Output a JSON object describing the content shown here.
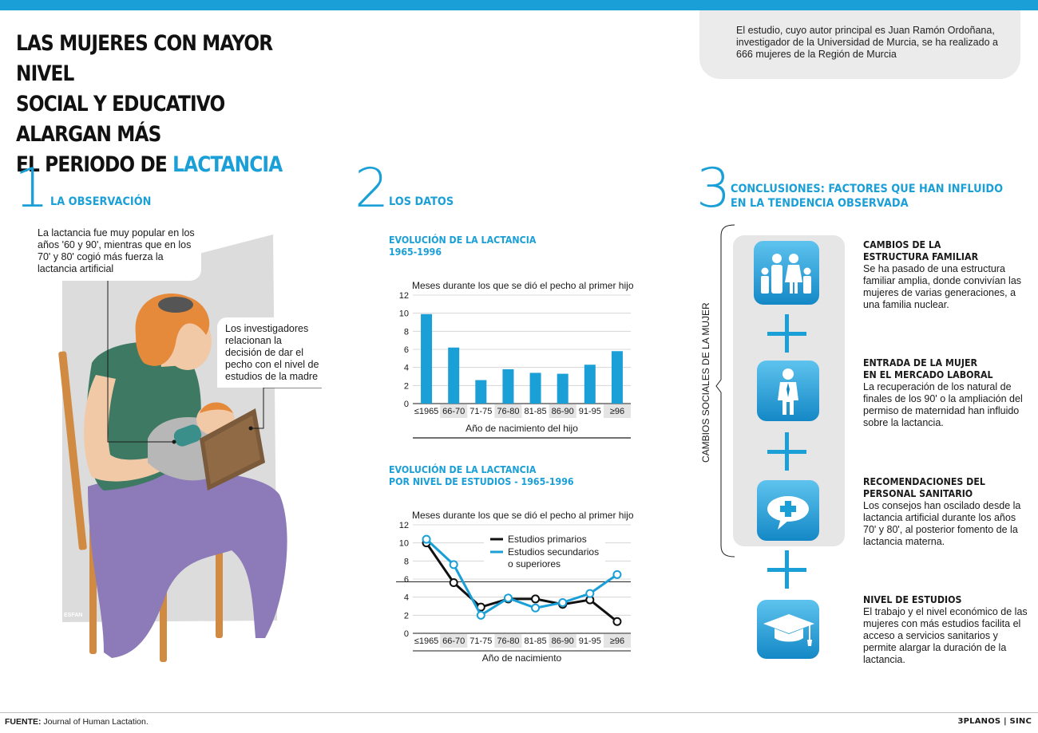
{
  "header": {
    "title_line1": "LAS MUJERES CON MAYOR NIVEL",
    "title_line2": "SOCIAL Y EDUCATIVO ALARGAN MÁS",
    "title_line3_prefix": "EL PERIODO DE ",
    "title_line3_highlight": "LACTANCIA",
    "info_text": "El estudio, cuyo autor principal es Juan Ramón Ordoñana, investigador de la Universidad de Murcia, se ha realizado a 666 mujeres de la Región de Murcia"
  },
  "section1": {
    "number": "1",
    "title": "LA OBSERVACIÓN",
    "callout1": "La lactancia fue muy popular en los años '60 y 90', mientras que en los 70' y 80' cogió más fuerza la lactancia artificial",
    "callout2": "Los investigadores relacionan la decisión de dar el pecho con el nivel de estudios de la madre",
    "illustration_signature": "ESFAN"
  },
  "section2": {
    "number": "2",
    "title": "LOS DATOS",
    "chart1_title_line1": "EVOLUCIÓN DE LA LACTANCIA",
    "chart1_title_line2": "1965-1996",
    "chart2_title_line1": "EVOLUCIÓN DE LA LACTANCIA",
    "chart2_title_line2": "POR NIVEL DE ESTUDIOS - 1965-1996"
  },
  "chart_data": [
    {
      "type": "bar",
      "title": "Meses durante los que se dió el pecho al primer hijo",
      "xlabel": "Año de nacimiento del hijo",
      "ylabel": "",
      "categories": [
        "≤1965",
        "66-70",
        "71-75",
        "76-80",
        "81-85",
        "86-90",
        "91-95",
        "≥96"
      ],
      "values": [
        9.9,
        6.2,
        2.6,
        3.8,
        3.4,
        3.3,
        4.3,
        5.8
      ],
      "ylim": [
        0,
        12
      ],
      "yticks": [
        "0",
        "2",
        "4",
        "6",
        "8",
        "10",
        "12"
      ],
      "grid": true,
      "color": "#1b9fd7"
    },
    {
      "type": "line",
      "title": "Meses durante los que se dió el pecho al primer hijo",
      "xlabel": "Año de nacimiento",
      "ylabel": "",
      "categories": [
        "≤1965",
        "66-70",
        "71-75",
        "76-80",
        "81-85",
        "86-90",
        "91-95",
        "≥96"
      ],
      "ylim": [
        0,
        12
      ],
      "yticks": [
        "0",
        "2",
        "4",
        "6",
        "8",
        "10",
        "12"
      ],
      "grid": true,
      "legend": "top-right",
      "series": [
        {
          "name": "Estudios primarios",
          "color": "#111111",
          "values": [
            10.0,
            5.6,
            2.9,
            3.8,
            3.8,
            3.2,
            3.7,
            1.3
          ]
        },
        {
          "name": "Estudios secundarios o superiores",
          "name_line1": "Estudios secundarios",
          "name_line2": "o superiores",
          "color": "#1b9fd7",
          "values": [
            10.4,
            7.6,
            2.0,
            3.9,
            2.8,
            3.4,
            4.4,
            6.5
          ]
        }
      ]
    }
  ],
  "section3": {
    "number": "3",
    "title_line1": "CONCLUSIONES: FACTORES QUE HAN INFLUIDO",
    "title_line2": "EN LA TENDENCIA OBSERVADA",
    "vertical_label": "CAMBIOS SOCIALES DE LA MUJER",
    "plus_sign": "+",
    "items": [
      {
        "title_line1": "CAMBIOS DE LA",
        "title_line2": "ESTRUCTURA FAMILIAR",
        "text": "Se ha pasado de una estructura familiar amplia, donde convivían las mujeres de varias generaciones, a una familia nuclear.",
        "icon": "family-icon"
      },
      {
        "title_line1": "ENTRADA DE LA MUJER",
        "title_line2": "EN EL MERCADO LABORAL",
        "text": "La recuperación de los natural de finales de los 90' o la ampliación del permiso de maternidad han influido sobre la lactancia.",
        "icon": "working-woman-icon"
      },
      {
        "title_line1": "RECOMENDACIONES DEL",
        "title_line2": "PERSONAL SANITARIO",
        "text": "Los consejos han oscilado desde la lactancia artificial durante los años 70' y 80', al posterior fomento de la lactancia materna.",
        "icon": "medical-cross-bubble-icon"
      },
      {
        "title_line1": "NIVEL DE ESTUDIOS",
        "title_line2": "",
        "text": "El trabajo y el nivel económico de las mujeres con más estudios facilita el acceso a servicios sanitarios y permite alargar la duración de la lactancia.",
        "icon": "graduation-cap-icon"
      }
    ]
  },
  "footer": {
    "source_label": "FUENTE:",
    "source_text": " Journal of Human Lactation.",
    "credit": "3PLANOS | SINC"
  }
}
